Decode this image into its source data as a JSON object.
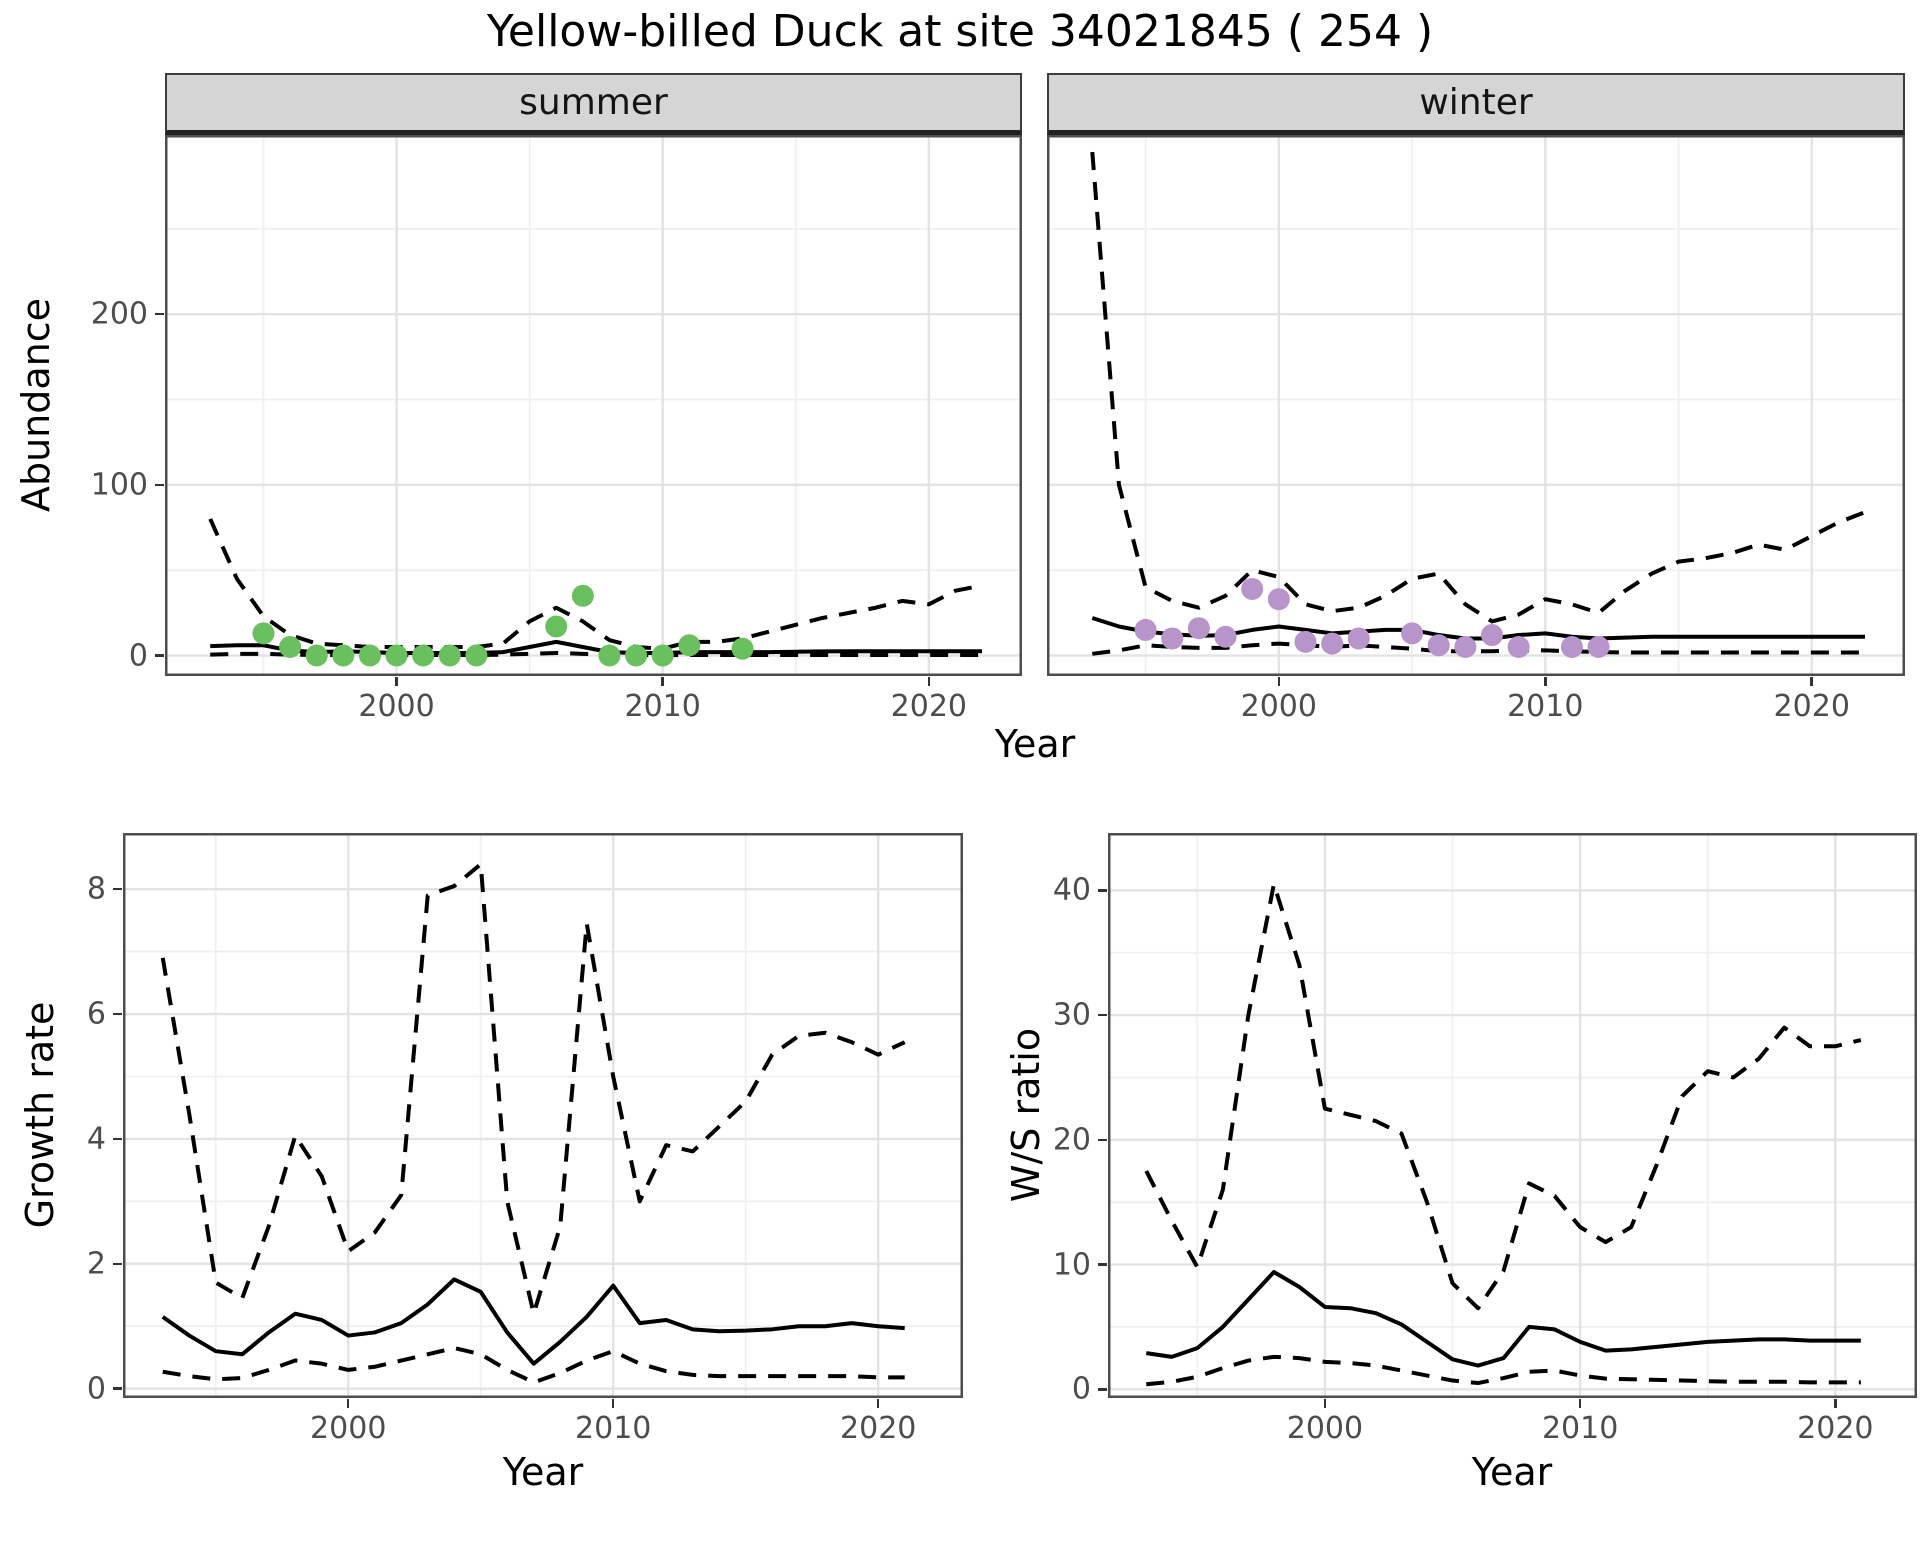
{
  "colors": {
    "summer_points": "#6abf5f",
    "winter_points": "#b794ca",
    "line": "#000000",
    "grid_major": "#e3e3e3",
    "grid_minor": "#f0f0f0",
    "strip_bg": "#d5d5d5",
    "tick_label": "#4d4d4d",
    "panel_border": "#4d4d4d"
  },
  "chart_data": [
    {
      "id": "abundance",
      "type": "line",
      "title": "Yellow-billed Duck at site 34021845 ( 254 )",
      "xlabel": "Year",
      "ylabel": "Abundance",
      "x_ticks": [
        2000,
        2010,
        2020
      ],
      "x_minor": [
        1995,
        2005,
        2015
      ],
      "y_ticks": [
        0,
        100,
        200
      ],
      "y_minor": [
        50,
        150,
        250
      ],
      "xlim": [
        1991.3,
        2023.5
      ],
      "ylim": [
        -12,
        305
      ],
      "years_start": 1993,
      "grid": true,
      "legend": "none",
      "facets": [
        {
          "label": "summer",
          "point_color": "#6abf5f",
          "series": {
            "median": [
              5.5,
              6,
              6,
              3,
              2,
              2.5,
              2,
              1.5,
              1.5,
              1.5,
              1.5,
              2,
              5,
              8,
              5,
              2,
              1.5,
              1.5,
              2,
              2,
              2,
              2,
              2.2,
              2.4,
              2.5,
              2.5,
              2.5,
              2.5,
              2.5,
              2.5
            ],
            "upper": [
              80,
              45,
              23,
              12,
              7,
              6,
              5,
              5,
              5,
              5,
              5,
              7,
              20,
              28,
              20,
              9,
              5,
              4,
              8,
              8,
              10,
              14,
              18,
              22,
              25,
              28,
              32,
              30,
              38,
              41
            ],
            "lower": [
              0.5,
              1,
              1,
              0.5,
              0.3,
              0.3,
              0.3,
              0.3,
              0.3,
              0.3,
              0.3,
              0.5,
              1,
              1.5,
              1,
              0.3,
              0.2,
              0.2,
              0.3,
              0.3,
              0.3,
              0.3,
              0.3,
              0.3,
              0.3,
              0.3,
              0.3,
              0.3,
              0.3,
              0.3
            ]
          },
          "observations": {
            "years": [
              1995,
              1996,
              1997,
              1998,
              1999,
              2000,
              2001,
              2002,
              2003,
              2006,
              2007,
              2008,
              2009,
              2010,
              2011,
              2013
            ],
            "values": [
              13,
              5,
              0,
              0,
              0,
              0,
              0,
              0,
              0,
              17,
              35,
              0,
              0,
              0,
              6,
              4
            ]
          }
        },
        {
          "label": "winter",
          "point_color": "#b794ca",
          "series": {
            "median": [
              22,
              17,
              14,
              12.5,
              11.5,
              12,
              15,
              17,
              15,
              13,
              14,
              15,
              15,
              12,
              10,
              10,
              12,
              13,
              11,
              10,
              10.5,
              11,
              11,
              11,
              11,
              11,
              11,
              11,
              11,
              11
            ],
            "upper": [
              295,
              100,
              40,
              32,
              28,
              35,
              50,
              46,
              30,
              26,
              28,
              35,
              45,
              48,
              30,
              20,
              24,
              33,
              30,
              25,
              38,
              48,
              55,
              57,
              60,
              65,
              62,
              70,
              78,
              84
            ],
            "lower": [
              1,
              3,
              6,
              5,
              4.5,
              4.5,
              6,
              7,
              6,
              5,
              6,
              5,
              4,
              2.5,
              2.5,
              2.5,
              3,
              3,
              2.5,
              2,
              1.8,
              1.8,
              1.8,
              1.8,
              1.8,
              1.8,
              1.8,
              1.8,
              1.8,
              1.8
            ]
          },
          "observations": {
            "years": [
              1995,
              1996,
              1997,
              1998,
              1999,
              2000,
              2001,
              2002,
              2003,
              2005,
              2006,
              2007,
              2008,
              2009,
              2011,
              2012
            ],
            "values": [
              15,
              10,
              16,
              11,
              39,
              33,
              8,
              7,
              10,
              13,
              6,
              5,
              12,
              5,
              5,
              5
            ]
          }
        }
      ]
    },
    {
      "id": "growth_rate",
      "type": "line",
      "title": "",
      "xlabel": "Year",
      "ylabel": "Growth rate",
      "x_ticks": [
        2000,
        2010,
        2020
      ],
      "x_minor": [
        1995,
        2005,
        2015
      ],
      "y_ticks": [
        0,
        2,
        4,
        6,
        8
      ],
      "y_minor": [
        1,
        3,
        5,
        7
      ],
      "xlim": [
        1991.5,
        2023.2
      ],
      "ylim": [
        -0.15,
        8.9
      ],
      "years_start": 1993,
      "grid": true,
      "legend": "none",
      "series": {
        "median": [
          1.15,
          0.85,
          0.6,
          0.55,
          0.9,
          1.2,
          1.1,
          0.85,
          0.9,
          1.05,
          1.35,
          1.75,
          1.55,
          0.9,
          0.4,
          0.75,
          1.15,
          1.65,
          1.05,
          1.1,
          0.95,
          0.92,
          0.93,
          0.95,
          1.0,
          1.0,
          1.05,
          1.0,
          0.97
        ],
        "upper": [
          6.9,
          4.4,
          1.7,
          1.45,
          2.6,
          4.05,
          3.4,
          2.2,
          2.5,
          3.1,
          7.9,
          8.05,
          8.4,
          3.0,
          1.2,
          2.6,
          7.45,
          5.0,
          3.0,
          3.9,
          3.8,
          4.2,
          4.6,
          5.35,
          5.65,
          5.7,
          5.55,
          5.35,
          5.55
        ],
        "lower": [
          0.27,
          0.2,
          0.15,
          0.17,
          0.3,
          0.45,
          0.4,
          0.3,
          0.35,
          0.45,
          0.55,
          0.65,
          0.55,
          0.3,
          0.1,
          0.25,
          0.45,
          0.6,
          0.4,
          0.28,
          0.22,
          0.2,
          0.2,
          0.2,
          0.2,
          0.2,
          0.2,
          0.18,
          0.18
        ]
      }
    },
    {
      "id": "ws_ratio",
      "type": "line",
      "title": "",
      "xlabel": "Year",
      "ylabel": "W/S ratio",
      "x_ticks": [
        2000,
        2010,
        2020
      ],
      "x_minor": [
        1995,
        2005,
        2015
      ],
      "y_ticks": [
        0,
        10,
        20,
        30,
        40
      ],
      "y_minor": [
        5,
        15,
        25,
        35
      ],
      "xlim": [
        1991.5,
        2023.2
      ],
      "ylim": [
        -0.7,
        44.6
      ],
      "years_start": 1993,
      "grid": true,
      "legend": "none",
      "series": {
        "median": [
          2.9,
          2.6,
          3.3,
          5.0,
          7.2,
          9.4,
          8.2,
          6.6,
          6.5,
          6.1,
          5.2,
          3.8,
          2.4,
          1.9,
          2.5,
          5.0,
          4.8,
          3.8,
          3.1,
          3.2,
          3.4,
          3.6,
          3.8,
          3.9,
          4.0,
          4.0,
          3.9,
          3.9,
          3.9
        ],
        "upper": [
          17.5,
          13.5,
          9.8,
          16,
          30,
          40.5,
          34,
          22.5,
          22,
          21.5,
          20.5,
          15,
          8.5,
          6.5,
          9.5,
          16.5,
          15.5,
          13,
          11.8,
          13,
          18,
          23.5,
          25.5,
          25,
          26.5,
          29,
          27.5,
          27.5,
          28
        ],
        "lower": [
          0.4,
          0.6,
          1.0,
          1.7,
          2.3,
          2.6,
          2.5,
          2.2,
          2.1,
          1.9,
          1.5,
          1.1,
          0.7,
          0.5,
          0.9,
          1.4,
          1.5,
          1.1,
          0.85,
          0.8,
          0.75,
          0.7,
          0.65,
          0.6,
          0.6,
          0.6,
          0.55,
          0.55,
          0.55
        ]
      }
    }
  ]
}
